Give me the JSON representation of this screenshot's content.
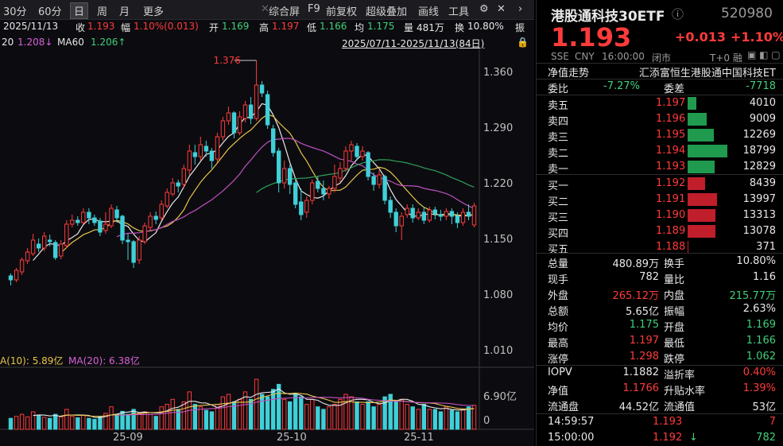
{
  "toolbar": {
    "items": [
      "30分",
      "60分",
      "日",
      "周",
      "月",
      "更多"
    ],
    "right_items": [
      "综合屏",
      "F9",
      "前复权",
      "超级叠加",
      "画线",
      "工具"
    ]
  },
  "info": {
    "date": "2025/11/13",
    "close_label": "收",
    "close": "1.193",
    "change_label": "幅",
    "change": "1.10%(0.013)",
    "open_label": "开",
    "open": "1.169",
    "high_label": "高",
    "high": "1.197",
    "low_label": "低",
    "low": "1.166",
    "avg_label": "均",
    "avg": "1.175",
    "vol_label": "量",
    "vol": "481万",
    "turnover_label": "换",
    "turnover": "10.80%",
    "tail": "振"
  },
  "ma_bar": {
    "ma20_label": "20",
    "ma20": "1.208↓",
    "ma60_label": "MA60",
    "ma60": "1.206↑",
    "range": "2025/07/11-2025/11/13(84日)"
  },
  "vol_bar": {
    "ma10": "A(10): 5.89亿",
    "ma20": "MA(20): 6.38亿"
  },
  "chart_data": {
    "type": "candlestick",
    "y_ticks": [
      "1.360",
      "1.290",
      "1.220",
      "1.150",
      "1.080",
      "1.010"
    ],
    "y_tick_values": [
      1.36,
      1.29,
      1.22,
      1.15,
      1.08,
      1.01
    ],
    "ylim": [
      1.01,
      1.39
    ],
    "x_ticks": [
      "25-09",
      "25-10",
      "25-11"
    ],
    "max_label": "1.376",
    "vol_ticks": [
      "6.90亿",
      "0"
    ],
    "candles": [
      [
        1.105,
        1.1,
        1.108,
        1.093
      ],
      [
        1.1,
        1.112,
        1.115,
        1.097
      ],
      [
        1.11,
        1.125,
        1.128,
        1.106
      ],
      [
        1.124,
        1.135,
        1.14,
        1.12
      ],
      [
        1.133,
        1.15,
        1.158,
        1.13
      ],
      [
        1.145,
        1.14,
        1.152,
        1.135
      ],
      [
        1.14,
        1.155,
        1.16,
        1.136
      ],
      [
        1.15,
        1.148,
        1.157,
        1.142
      ],
      [
        1.147,
        1.128,
        1.15,
        1.125
      ],
      [
        1.13,
        1.145,
        1.15,
        1.126
      ],
      [
        1.143,
        1.17,
        1.175,
        1.14
      ],
      [
        1.17,
        1.175,
        1.182,
        1.166
      ],
      [
        1.175,
        1.172,
        1.18,
        1.168
      ],
      [
        1.172,
        1.185,
        1.19,
        1.17
      ],
      [
        1.185,
        1.178,
        1.19,
        1.17
      ],
      [
        1.178,
        1.172,
        1.182,
        1.168
      ],
      [
        1.174,
        1.16,
        1.178,
        1.155
      ],
      [
        1.162,
        1.17,
        1.185,
        1.158
      ],
      [
        1.168,
        1.19,
        1.195,
        1.165
      ],
      [
        1.188,
        1.178,
        1.193,
        1.172
      ],
      [
        1.18,
        1.15,
        1.182,
        1.145
      ],
      [
        1.15,
        1.148,
        1.158,
        1.125
      ],
      [
        1.148,
        1.122,
        1.15,
        1.115
      ],
      [
        1.125,
        1.15,
        1.155,
        1.12
      ],
      [
        1.148,
        1.168,
        1.172,
        1.145
      ],
      [
        1.166,
        1.18,
        1.185,
        1.162
      ],
      [
        1.18,
        1.176,
        1.186,
        1.17
      ],
      [
        1.178,
        1.195,
        1.2,
        1.175
      ],
      [
        1.193,
        1.21,
        1.215,
        1.19
      ],
      [
        1.208,
        1.222,
        1.228,
        1.205
      ],
      [
        1.222,
        1.218,
        1.226,
        1.21
      ],
      [
        1.22,
        1.24,
        1.245,
        1.215
      ],
      [
        1.238,
        1.262,
        1.27,
        1.232
      ],
      [
        1.26,
        1.255,
        1.27,
        1.245
      ],
      [
        1.255,
        1.27,
        1.28,
        1.25
      ],
      [
        1.268,
        1.262,
        1.275,
        1.255
      ],
      [
        1.262,
        1.25,
        1.266,
        1.24
      ],
      [
        1.252,
        1.28,
        1.285,
        1.248
      ],
      [
        1.28,
        1.3,
        1.305,
        1.275
      ],
      [
        1.3,
        1.31,
        1.318,
        1.295
      ],
      [
        1.31,
        1.285,
        1.312,
        1.278
      ],
      [
        1.285,
        1.305,
        1.312,
        1.282
      ],
      [
        1.303,
        1.32,
        1.325,
        1.298
      ],
      [
        1.32,
        1.303,
        1.33,
        1.296
      ],
      [
        1.303,
        1.345,
        1.376,
        1.3
      ],
      [
        1.345,
        1.335,
        1.35,
        1.33
      ],
      [
        1.333,
        1.295,
        1.338,
        1.29
      ],
      [
        1.29,
        1.26,
        1.295,
        1.255
      ],
      [
        1.262,
        1.222,
        1.266,
        1.21
      ],
      [
        1.222,
        1.24,
        1.25,
        1.215
      ],
      [
        1.24,
        1.22,
        1.245,
        1.208
      ],
      [
        1.222,
        1.195,
        1.226,
        1.19
      ],
      [
        1.198,
        1.182,
        1.215,
        1.175
      ],
      [
        1.185,
        1.2,
        1.205,
        1.178
      ],
      [
        1.2,
        1.222,
        1.226,
        1.195
      ],
      [
        1.224,
        1.215,
        1.23,
        1.21
      ],
      [
        1.215,
        1.208,
        1.225,
        1.2
      ],
      [
        1.208,
        1.215,
        1.218,
        1.202
      ],
      [
        1.215,
        1.23,
        1.245,
        1.21
      ],
      [
        1.228,
        1.24,
        1.248,
        1.222
      ],
      [
        1.24,
        1.262,
        1.268,
        1.236
      ],
      [
        1.262,
        1.27,
        1.275,
        1.25
      ],
      [
        1.268,
        1.255,
        1.272,
        1.25
      ],
      [
        1.255,
        1.262,
        1.268,
        1.25
      ],
      [
        1.26,
        1.23,
        1.262,
        1.225
      ],
      [
        1.23,
        1.22,
        1.235,
        1.212
      ],
      [
        1.22,
        1.232,
        1.238,
        1.215
      ],
      [
        1.23,
        1.2,
        1.232,
        1.195
      ],
      [
        1.2,
        1.185,
        1.205,
        1.178
      ],
      [
        1.185,
        1.168,
        1.19,
        1.16
      ],
      [
        1.168,
        1.18,
        1.185,
        1.15
      ],
      [
        1.182,
        1.19,
        1.195,
        1.178
      ],
      [
        1.19,
        1.178,
        1.195,
        1.172
      ],
      [
        1.178,
        1.185,
        1.19,
        1.175
      ],
      [
        1.185,
        1.175,
        1.192,
        1.17
      ],
      [
        1.175,
        1.188,
        1.192,
        1.172
      ],
      [
        1.188,
        1.183,
        1.192,
        1.176
      ],
      [
        1.182,
        1.18,
        1.188,
        1.174
      ],
      [
        1.18,
        1.186,
        1.19,
        1.175
      ],
      [
        1.186,
        1.18,
        1.19,
        1.17
      ],
      [
        1.18,
        1.172,
        1.185,
        1.165
      ],
      [
        1.172,
        1.185,
        1.19,
        1.168
      ],
      [
        1.185,
        1.18,
        1.195,
        1.175
      ],
      [
        1.169,
        1.193,
        1.197,
        1.166
      ]
    ],
    "volumes": [
      2.2,
      2.6,
      3.0,
      2.5,
      3.5,
      2.8,
      2.4,
      2.2,
      3.0,
      2.5,
      4.0,
      2.6,
      2.3,
      2.8,
      2.2,
      2.0,
      2.5,
      3.2,
      4.5,
      3.0,
      3.6,
      3.0,
      4.0,
      3.2,
      3.5,
      3.0,
      2.6,
      4.5,
      5.0,
      6.0,
      4.0,
      5.5,
      7.5,
      5.0,
      4.5,
      3.8,
      3.5,
      5.0,
      6.5,
      7.0,
      5.5,
      6.0,
      7.5,
      6.0,
      10.0,
      7.0,
      6.5,
      8.0,
      9.0,
      6.0,
      5.5,
      7.0,
      6.5,
      5.0,
      6.0,
      4.5,
      4.0,
      4.5,
      5.0,
      6.0,
      7.0,
      6.5,
      5.5,
      5.0,
      5.5,
      4.5,
      5.0,
      6.5,
      7.0,
      5.5,
      6.0,
      5.0,
      4.5,
      4.0,
      5.0,
      4.0,
      4.0,
      3.5,
      4.5,
      3.8,
      3.5,
      4.0,
      4.5,
      4.81
    ]
  },
  "side": {
    "title": "港股通科技30ETF",
    "code": "520980",
    "price": "1.193",
    "change": "+0.013",
    "change_pct": "+1.10%",
    "meta": [
      "SSE",
      "CNY",
      "16:00:00",
      "闭市"
    ],
    "meta_right": "T+0 融",
    "nav_label": "净值走势",
    "full_name": "汇添富恒生港股通中国科技ET",
    "ratio_label": "委比",
    "ratio": "-7.27%",
    "diff_label": "委差",
    "diff": "-7718",
    "asks": [
      {
        "label": "卖五",
        "price": "1.197",
        "vol": "4010",
        "frac": 0.213
      },
      {
        "label": "卖四",
        "price": "1.196",
        "vol": "9009",
        "frac": 0.479
      },
      {
        "label": "卖三",
        "price": "1.195",
        "vol": "12269",
        "frac": 0.653
      },
      {
        "label": "卖二",
        "price": "1.194",
        "vol": "18799",
        "frac": 1.0
      },
      {
        "label": "卖一",
        "price": "1.193",
        "vol": "12829",
        "frac": 0.682
      }
    ],
    "bids": [
      {
        "label": "买一",
        "price": "1.192",
        "vol": "8439",
        "frac": 0.449
      },
      {
        "label": "买二",
        "price": "1.191",
        "vol": "13997",
        "frac": 0.745
      },
      {
        "label": "买三",
        "price": "1.190",
        "vol": "13313",
        "frac": 0.708
      },
      {
        "label": "买四",
        "price": "1.189",
        "vol": "13078",
        "frac": 0.696
      },
      {
        "label": "买五",
        "price": "1.188",
        "vol": "371",
        "frac": 0.02
      }
    ],
    "stats": [
      {
        "l1": "总量",
        "v1": "480.89万",
        "c1": "white",
        "l2": "换手",
        "v2": "10.80%",
        "c2": "white"
      },
      {
        "l1": "现手",
        "v1": "782",
        "c1": "white",
        "l2": "量比",
        "v2": "1.16",
        "c2": "white"
      },
      {
        "l1": "外盘",
        "v1": "265.12万",
        "c1": "red",
        "l2": "内盘",
        "v2": "215.77万",
        "c2": "green"
      },
      {
        "l1": "总额",
        "v1": "5.65亿",
        "c1": "white",
        "l2": "振幅",
        "v2": "2.63%",
        "c2": "white"
      },
      {
        "l1": "均价",
        "v1": "1.175",
        "c1": "green",
        "l2": "开盘",
        "v2": "1.169",
        "c2": "green"
      },
      {
        "l1": "最高",
        "v1": "1.197",
        "c1": "red",
        "l2": "最低",
        "v2": "1.166",
        "c2": "green"
      },
      {
        "l1": "涨停",
        "v1": "1.298",
        "c1": "red",
        "l2": "跌停",
        "v2": "1.062",
        "c2": "green"
      }
    ],
    "stats2": [
      {
        "l1": "IOPV",
        "v1": "1.1882",
        "c1": "white",
        "l2": "溢折率",
        "v2": "0.40%",
        "c2": "red"
      },
      {
        "l1": "净值",
        "v1": "1.1766",
        "c1": "red",
        "l2": "升贴水率",
        "v2": "1.39%",
        "c2": "red"
      },
      {
        "l1": "流通盘",
        "v1": "44.52亿",
        "c1": "white",
        "l2": "流通值",
        "v2": "53亿",
        "c2": "white"
      }
    ],
    "ticks": [
      {
        "time": "14:59:57",
        "price": "1.193",
        "vol": "7",
        "arrow": ""
      },
      {
        "time": "15:00:00",
        "price": "1.192",
        "vol": "782",
        "arrow": "↓"
      }
    ]
  }
}
